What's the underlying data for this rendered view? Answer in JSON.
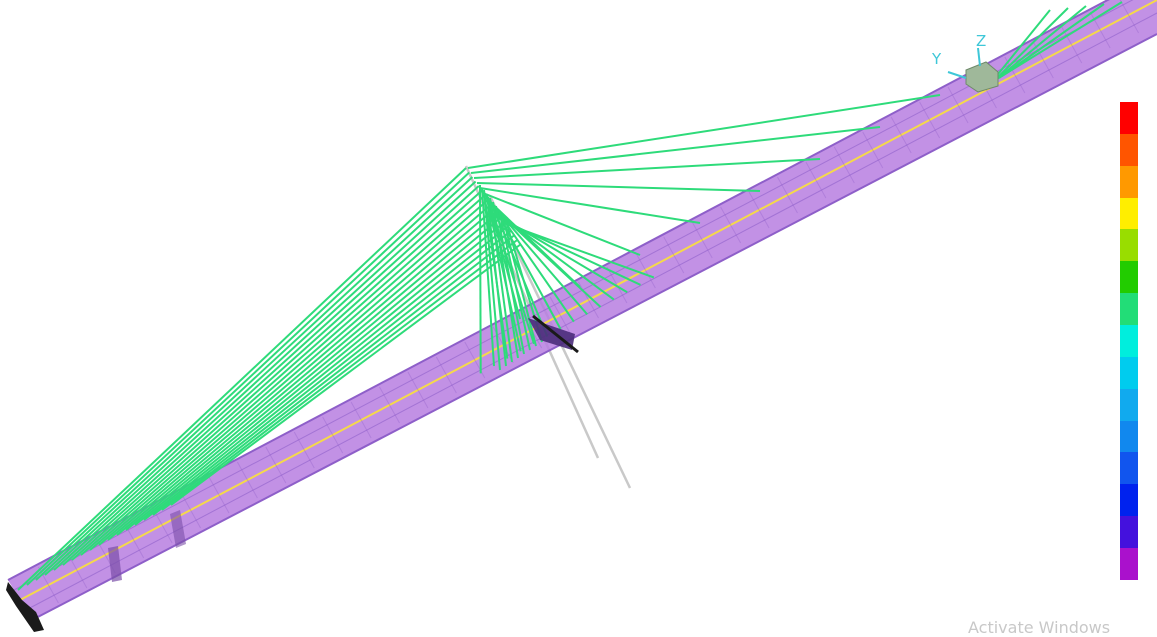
{
  "viewport": {
    "background": "#ffffff",
    "deck_color": "#b77ee0",
    "deck_edge_color": "#8e5fc9",
    "deck_centerline_color": "#f5d94a",
    "cable_color": "#2edb7a",
    "pylon_color": "#c9c9c9",
    "support_color": "#1a1a1a"
  },
  "axis_triad": {
    "labels": [
      "Y",
      "Z"
    ],
    "color": "#3ec7d8",
    "cube_color": "#9fb89a"
  },
  "legend": {
    "colors": [
      "#ff0000",
      "#ff5500",
      "#ff9900",
      "#ffee00",
      "#99dd00",
      "#22cc00",
      "#22dd77",
      "#00eedd",
      "#00ccee",
      "#11aaee",
      "#1188ee",
      "#1155ee",
      "#0022ee",
      "#4411dd",
      "#aa11cc"
    ]
  },
  "watermark": {
    "text": "Activate Windows"
  }
}
